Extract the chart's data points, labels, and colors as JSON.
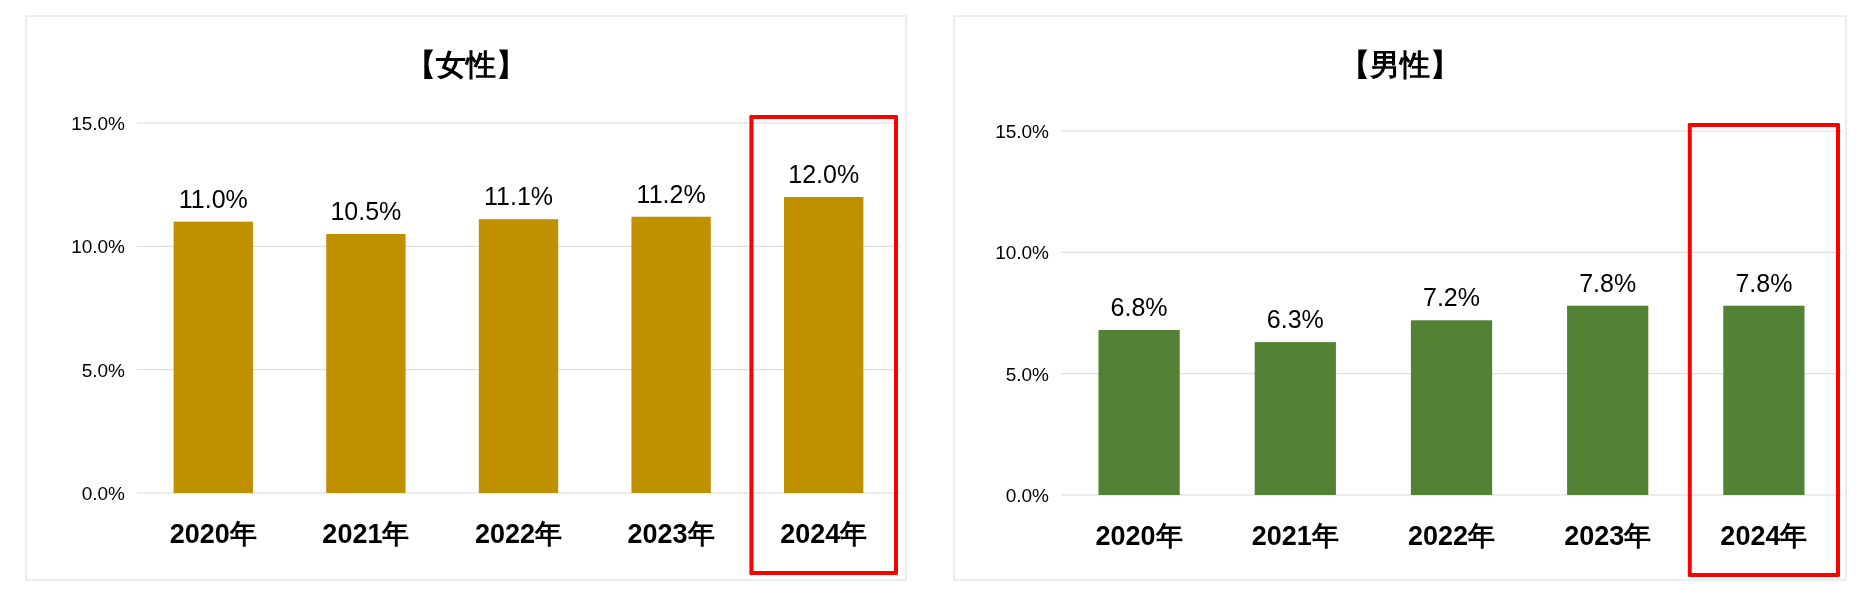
{
  "chart_data": [
    {
      "type": "bar",
      "title": "【女性】",
      "categories": [
        "2020年",
        "2021年",
        "2022年",
        "2023年",
        "2024年"
      ],
      "values": [
        11.0,
        10.5,
        11.1,
        11.2,
        12.0
      ],
      "color": "#bf9000",
      "value_labels": [
        "11.0%",
        "10.5%",
        "11.1%",
        "11.2%",
        "12.0%"
      ],
      "ylim": [
        0,
        15
      ],
      "yticks": [
        {
          "value": 0,
          "label": "0.0%"
        },
        {
          "value": 5,
          "label": "5.0%"
        },
        {
          "value": 10,
          "label": "10.0%"
        },
        {
          "value": 15,
          "label": "15.0%"
        }
      ],
      "grid": "y"
    },
    {
      "type": "bar",
      "title": "【男性】",
      "categories": [
        "2020年",
        "2021年",
        "2022年",
        "2023年",
        "2024年"
      ],
      "values": [
        6.8,
        6.3,
        7.2,
        7.8,
        7.8
      ],
      "color": "#548235",
      "value_labels": [
        "6.8%",
        "6.3%",
        "7.2%",
        "7.8%",
        "7.8%"
      ],
      "ylim": [
        0,
        15
      ],
      "yticks": [
        {
          "value": 0,
          "label": "0.0%"
        },
        {
          "value": 5,
          "label": "5.0%"
        },
        {
          "value": 10,
          "label": "10.0%"
        },
        {
          "value": 15,
          "label": "15.0%"
        }
      ],
      "grid": "y"
    }
  ]
}
